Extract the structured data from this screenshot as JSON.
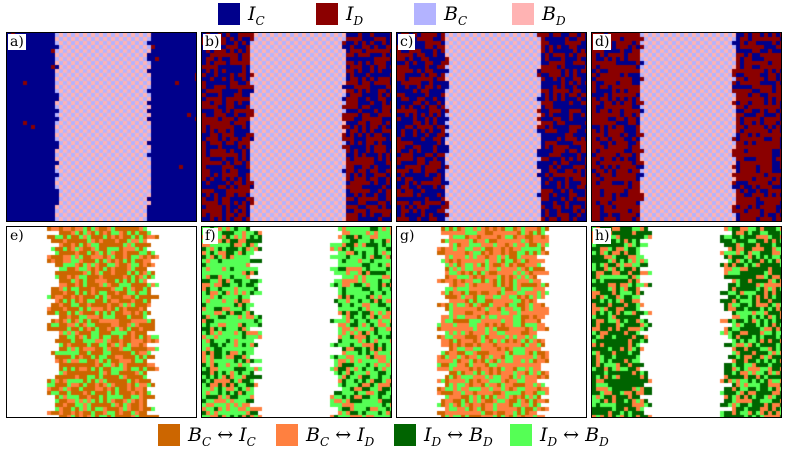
{
  "legend_top": [
    {
      "key": "IC",
      "sym": "I",
      "sub": "C",
      "color": "#00008b"
    },
    {
      "key": "ID",
      "sym": "I",
      "sub": "D",
      "color": "#8b0000"
    },
    {
      "key": "BC",
      "sym": "B",
      "sub": "C",
      "color": "#b3b3ff"
    },
    {
      "key": "BD",
      "sym": "B",
      "sub": "D",
      "color": "#ffb3b3"
    }
  ],
  "legend_bottom": [
    {
      "key": "BC-IC",
      "a": "B",
      "asub": "C",
      "arrow": "↔",
      "b": "I",
      "bsub": "C",
      "color": "#cc6600"
    },
    {
      "key": "BC-ID",
      "a": "B",
      "asub": "C",
      "arrow": "↔",
      "b": "I",
      "bsub": "D",
      "color": "#ff8040"
    },
    {
      "key": "ID-BD",
      "a": "I",
      "asub": "D",
      "arrow": "↔",
      "b": "B",
      "bsub": "D",
      "color": "#006400"
    },
    {
      "key": "ID-BD2",
      "a": "I",
      "asub": "D",
      "arrow": "↔",
      "b": "B",
      "bsub": "D",
      "color": "#55ff55"
    }
  ],
  "panels": [
    {
      "label": "a)",
      "kind": "state",
      "blue_fraction": 0.98
    },
    {
      "label": "b)",
      "kind": "state",
      "blue_fraction": 0.45
    },
    {
      "label": "c)",
      "kind": "state",
      "blue_fraction": 0.55
    },
    {
      "label": "d)",
      "kind": "state",
      "blue_fraction": 0.3
    },
    {
      "label": "e)",
      "kind": "transition",
      "mode": "middle",
      "colors": [
        "#cc6600",
        "#cc6600",
        "#ff8040",
        "#55ff55"
      ]
    },
    {
      "label": "f)",
      "kind": "transition",
      "mode": "sides",
      "colors": [
        "#55ff55",
        "#55ff55",
        "#006400",
        "#ff8040"
      ]
    },
    {
      "label": "g)",
      "kind": "transition",
      "mode": "middle",
      "colors": [
        "#ff8040",
        "#ff8040",
        "#cc6600",
        "#55ff55"
      ]
    },
    {
      "label": "h)",
      "kind": "transition",
      "mode": "sides",
      "colors": [
        "#006400",
        "#006400",
        "#55ff55",
        "#ff8040"
      ]
    }
  ]
}
